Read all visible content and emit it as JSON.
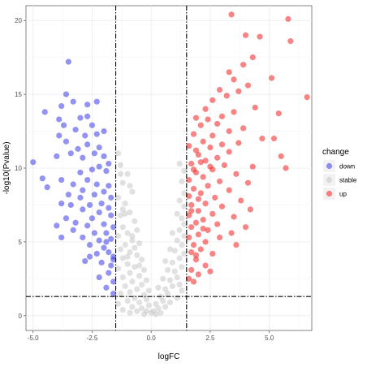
{
  "chart_data": {
    "type": "scatter",
    "title": "",
    "xlabel": "logFC",
    "ylabel": "-log10(Pvalue)",
    "xlim": [
      -5.3,
      6.8
    ],
    "ylim": [
      -1.0,
      21.0
    ],
    "x_ticks": [
      -5.0,
      -2.5,
      0.0,
      2.5,
      5.0
    ],
    "x_tick_labels": [
      "-5.0",
      "-2.5",
      "0.0",
      "2.5",
      "5.0"
    ],
    "y_ticks": [
      0,
      5,
      10,
      15,
      20
    ],
    "y_tick_labels": [
      "0",
      "5",
      "10",
      "15",
      "20"
    ],
    "grid": true,
    "vlines": [
      -1.5,
      1.5
    ],
    "hline": 1.3,
    "legend": {
      "title": "change",
      "position": "right",
      "entries": [
        {
          "label": "down",
          "color": "#3b3be8"
        },
        {
          "label": "stable",
          "color": "#c8c8c8"
        },
        {
          "label": "up",
          "color": "#f02020"
        }
      ]
    },
    "series": [
      {
        "name": "down",
        "color": "#3b3be8",
        "points": [
          [
            -3.5,
            17.2
          ],
          [
            -3.6,
            15.0
          ],
          [
            -4.5,
            13.8
          ],
          [
            -3.8,
            14.2
          ],
          [
            -3.3,
            14.5
          ],
          [
            -2.7,
            14.3
          ],
          [
            -2.3,
            14.5
          ],
          [
            -3.0,
            13.4
          ],
          [
            -2.7,
            13.5
          ],
          [
            -3.9,
            13.3
          ],
          [
            -3.7,
            12.9
          ],
          [
            -2.5,
            12.9
          ],
          [
            -2.0,
            12.5
          ],
          [
            -2.3,
            12.3
          ],
          [
            -2.8,
            12.2
          ],
          [
            -3.2,
            12.6
          ],
          [
            -3.9,
            12.2
          ],
          [
            -3.6,
            11.8
          ],
          [
            -2.7,
            11.6
          ],
          [
            -2.2,
            11.4
          ],
          [
            -1.8,
            10.3
          ],
          [
            -3.1,
            11.3
          ],
          [
            -3.4,
            11.0
          ],
          [
            -2.4,
            11.0
          ],
          [
            -2.0,
            10.8
          ],
          [
            -2.9,
            10.7
          ],
          [
            -4.0,
            10.8
          ],
          [
            -5.0,
            10.4
          ],
          [
            -2.2,
            10.1
          ],
          [
            -3.0,
            9.7
          ],
          [
            -2.5,
            9.9
          ],
          [
            -1.9,
            9.8
          ],
          [
            -4.6,
            9.3
          ],
          [
            -3.8,
            9.2
          ],
          [
            -2.7,
            9.2
          ],
          [
            -3.3,
            8.9
          ],
          [
            -2.3,
            8.9
          ],
          [
            -1.8,
            8.8
          ],
          [
            -4.4,
            8.7
          ],
          [
            -2.9,
            8.5
          ],
          [
            -2.0,
            8.4
          ],
          [
            -3.5,
            8.2
          ],
          [
            -2.4,
            8.2
          ],
          [
            -1.7,
            8.0
          ],
          [
            -3.0,
            8.0
          ],
          [
            -3.8,
            7.6
          ],
          [
            -3.4,
            7.5
          ],
          [
            -2.6,
            7.5
          ],
          [
            -2.1,
            7.6
          ],
          [
            -1.8,
            7.3
          ],
          [
            -2.9,
            7.2
          ],
          [
            -2.2,
            7.0
          ],
          [
            -1.7,
            6.8
          ],
          [
            -3.6,
            6.6
          ],
          [
            -2.5,
            6.6
          ],
          [
            -3.2,
            6.3
          ],
          [
            -2.7,
            6.1
          ],
          [
            -2.0,
            6.2
          ],
          [
            -1.6,
            6.0
          ],
          [
            -4.0,
            6.1
          ],
          [
            -3.3,
            5.8
          ],
          [
            -2.4,
            5.6
          ],
          [
            -1.9,
            5.6
          ],
          [
            -3.8,
            5.3
          ],
          [
            -2.9,
            5.3
          ],
          [
            -2.2,
            5.1
          ],
          [
            -1.7,
            5.2
          ],
          [
            -2.6,
            4.8
          ],
          [
            -2.0,
            4.6
          ],
          [
            -1.8,
            4.3
          ],
          [
            -2.3,
            4.2
          ],
          [
            -1.6,
            4.0
          ],
          [
            -2.1,
            3.6
          ],
          [
            -1.7,
            3.4
          ],
          [
            -2.2,
            2.6
          ],
          [
            -1.8,
            2.9
          ],
          [
            -1.6,
            3.8
          ],
          [
            -1.9,
            5.0
          ],
          [
            -2.6,
            4.0
          ],
          [
            -2.8,
            3.7
          ],
          [
            -1.6,
            2.3
          ],
          [
            -1.9,
            1.9
          ],
          [
            -1.6,
            1.5
          ]
        ]
      },
      {
        "name": "stable",
        "color": "#c8c8c8",
        "points": [
          [
            -1.4,
            11.0
          ],
          [
            -1.3,
            10.2
          ],
          [
            -1.0,
            9.6
          ],
          [
            -1.2,
            9.0
          ],
          [
            -0.8,
            8.4
          ],
          [
            -1.4,
            8.0
          ],
          [
            -1.1,
            7.6
          ],
          [
            -0.9,
            7.0
          ],
          [
            -1.3,
            6.8
          ],
          [
            -0.7,
            6.4
          ],
          [
            -1.2,
            6.0
          ],
          [
            -1.0,
            5.6
          ],
          [
            -0.6,
            5.8
          ],
          [
            -1.4,
            5.4
          ],
          [
            -0.8,
            5.1
          ],
          [
            -1.1,
            4.8
          ],
          [
            -0.5,
            4.9
          ],
          [
            -1.3,
            4.5
          ],
          [
            -0.9,
            4.3
          ],
          [
            -0.6,
            4.1
          ],
          [
            -1.2,
            3.9
          ],
          [
            -0.4,
            3.8
          ],
          [
            -1.0,
            3.5
          ],
          [
            -0.7,
            3.3
          ],
          [
            -1.4,
            3.2
          ],
          [
            -0.3,
            3.1
          ],
          [
            -0.9,
            2.9
          ],
          [
            -0.5,
            2.7
          ],
          [
            -1.2,
            2.6
          ],
          [
            -0.2,
            2.4
          ],
          [
            -0.8,
            2.3
          ],
          [
            -0.4,
            2.1
          ],
          [
            -1.1,
            2.0
          ],
          [
            -0.6,
            1.8
          ],
          [
            -0.1,
            1.7
          ],
          [
            -0.9,
            1.6
          ],
          [
            -0.3,
            1.4
          ],
          [
            -1.3,
            1.5
          ],
          [
            -0.7,
            1.2
          ],
          [
            -0.2,
            1.1
          ],
          [
            -1.0,
            1.0
          ],
          [
            -0.5,
            0.9
          ],
          [
            -0.1,
            0.7
          ],
          [
            -0.8,
            0.6
          ],
          [
            -0.4,
            0.5
          ],
          [
            -0.2,
            0.3
          ],
          [
            -0.6,
            0.3
          ],
          [
            0.0,
            0.2
          ],
          [
            -0.3,
            0.1
          ],
          [
            -1.4,
            0.8
          ],
          [
            -1.2,
            0.4
          ],
          [
            -0.9,
            0.2
          ],
          [
            -1.1,
            6.9
          ],
          [
            -0.9,
            8.8
          ],
          [
            -1.3,
            9.6
          ],
          [
            -1.0,
            4.0
          ],
          [
            -0.7,
            4.6
          ],
          [
            -1.2,
            7.2
          ],
          [
            -0.5,
            3.4
          ],
          [
            -0.8,
            5.4
          ],
          [
            0.1,
            0.3
          ],
          [
            0.3,
            0.5
          ],
          [
            0.2,
            0.8
          ],
          [
            0.5,
            1.0
          ],
          [
            0.4,
            1.3
          ],
          [
            0.7,
            1.5
          ],
          [
            0.6,
            1.8
          ],
          [
            0.9,
            2.0
          ],
          [
            0.3,
            1.9
          ],
          [
            0.8,
            2.4
          ],
          [
            1.1,
            2.6
          ],
          [
            0.5,
            2.5
          ],
          [
            1.0,
            3.0
          ],
          [
            0.7,
            3.1
          ],
          [
            1.3,
            3.3
          ],
          [
            0.9,
            3.6
          ],
          [
            1.2,
            3.9
          ],
          [
            0.6,
            3.7
          ],
          [
            1.4,
            4.2
          ],
          [
            1.0,
            4.4
          ],
          [
            0.8,
            4.5
          ],
          [
            1.3,
            4.8
          ],
          [
            1.1,
            5.1
          ],
          [
            1.4,
            5.4
          ],
          [
            1.2,
            5.8
          ],
          [
            0.9,
            5.6
          ],
          [
            1.4,
            6.2
          ],
          [
            1.3,
            6.6
          ],
          [
            1.1,
            6.9
          ],
          [
            1.4,
            7.4
          ],
          [
            1.2,
            7.8
          ],
          [
            1.4,
            8.3
          ],
          [
            1.3,
            9.1
          ],
          [
            1.4,
            9.8
          ],
          [
            1.2,
            10.3
          ],
          [
            0.4,
            0.2
          ],
          [
            0.6,
            0.6
          ],
          [
            0.2,
            0.1
          ],
          [
            1.1,
            1.2
          ],
          [
            1.3,
            1.7
          ],
          [
            0.8,
            0.9
          ],
          [
            1.2,
            2.1
          ]
        ]
      },
      {
        "name": "up",
        "color": "#f02020",
        "points": [
          [
            3.4,
            20.4
          ],
          [
            5.8,
            20.1
          ],
          [
            4.0,
            19.0
          ],
          [
            4.6,
            18.9
          ],
          [
            5.9,
            18.6
          ],
          [
            4.3,
            17.5
          ],
          [
            3.9,
            17.0
          ],
          [
            3.3,
            16.5
          ],
          [
            5.1,
            16.1
          ],
          [
            3.5,
            16.0
          ],
          [
            4.1,
            15.6
          ],
          [
            3.7,
            15.2
          ],
          [
            2.9,
            15.3
          ],
          [
            3.2,
            14.9
          ],
          [
            6.6,
            14.8
          ],
          [
            2.6,
            14.6
          ],
          [
            4.4,
            14.1
          ],
          [
            2.3,
            14.0
          ],
          [
            3.5,
            13.8
          ],
          [
            5.4,
            13.7
          ],
          [
            3.0,
            13.5
          ],
          [
            2.4,
            13.3
          ],
          [
            1.9,
            13.4
          ],
          [
            2.8,
            13.0
          ],
          [
            2.1,
            12.9
          ],
          [
            3.9,
            12.7
          ],
          [
            3.3,
            12.5
          ],
          [
            1.8,
            12.3
          ],
          [
            2.6,
            12.2
          ],
          [
            4.7,
            12.0
          ],
          [
            5.2,
            12.0
          ],
          [
            2.2,
            11.8
          ],
          [
            3.7,
            11.7
          ],
          [
            3.0,
            11.6
          ],
          [
            1.6,
            11.5
          ],
          [
            2.5,
            11.4
          ],
          [
            1.9,
            11.2
          ],
          [
            3.3,
            11.1
          ],
          [
            2.0,
            10.9
          ],
          [
            2.8,
            10.7
          ],
          [
            5.5,
            10.8
          ],
          [
            2.3,
            10.5
          ],
          [
            1.7,
            10.3
          ],
          [
            3.1,
            10.2
          ],
          [
            4.3,
            10.1
          ],
          [
            5.7,
            10.0
          ],
          [
            2.6,
            9.9
          ],
          [
            1.9,
            9.7
          ],
          [
            3.6,
            9.6
          ],
          [
            2.2,
            9.4
          ],
          [
            1.6,
            9.2
          ],
          [
            2.9,
            9.1
          ],
          [
            4.1,
            9.0
          ],
          [
            2.4,
            8.8
          ],
          [
            1.8,
            8.6
          ],
          [
            3.3,
            8.5
          ],
          [
            2.1,
            8.3
          ],
          [
            1.6,
            8.1
          ],
          [
            2.7,
            8.0
          ],
          [
            3.8,
            7.8
          ],
          [
            2.3,
            7.6
          ],
          [
            1.7,
            7.5
          ],
          [
            3.0,
            7.4
          ],
          [
            4.2,
            7.2
          ],
          [
            2.0,
            7.1
          ],
          [
            2.6,
            6.9
          ],
          [
            1.6,
            6.8
          ],
          [
            3.5,
            6.7
          ],
          [
            2.2,
            6.5
          ],
          [
            1.9,
            6.3
          ],
          [
            2.8,
            6.2
          ],
          [
            4.0,
            6.0
          ],
          [
            1.7,
            6.0
          ],
          [
            2.4,
            5.8
          ],
          [
            3.4,
            5.6
          ],
          [
            2.0,
            5.5
          ],
          [
            1.6,
            5.3
          ],
          [
            2.9,
            5.3
          ],
          [
            2.3,
            5.0
          ],
          [
            1.8,
            4.8
          ],
          [
            3.6,
            4.8
          ],
          [
            2.1,
            4.5
          ],
          [
            1.7,
            4.3
          ],
          [
            2.6,
            4.2
          ],
          [
            1.9,
            3.8
          ],
          [
            2.3,
            3.4
          ],
          [
            1.7,
            3.1
          ],
          [
            2.0,
            2.8
          ],
          [
            1.6,
            2.5
          ],
          [
            2.5,
            3.0
          ],
          [
            1.8,
            2.3
          ],
          [
            2.0,
            7.9
          ],
          [
            1.8,
            9.9
          ],
          [
            2.2,
            5.9
          ],
          [
            1.7,
            7.1
          ],
          [
            2.1,
            10.4
          ],
          [
            2.5,
            10.1
          ],
          [
            1.9,
            4.1
          ]
        ]
      }
    ]
  }
}
